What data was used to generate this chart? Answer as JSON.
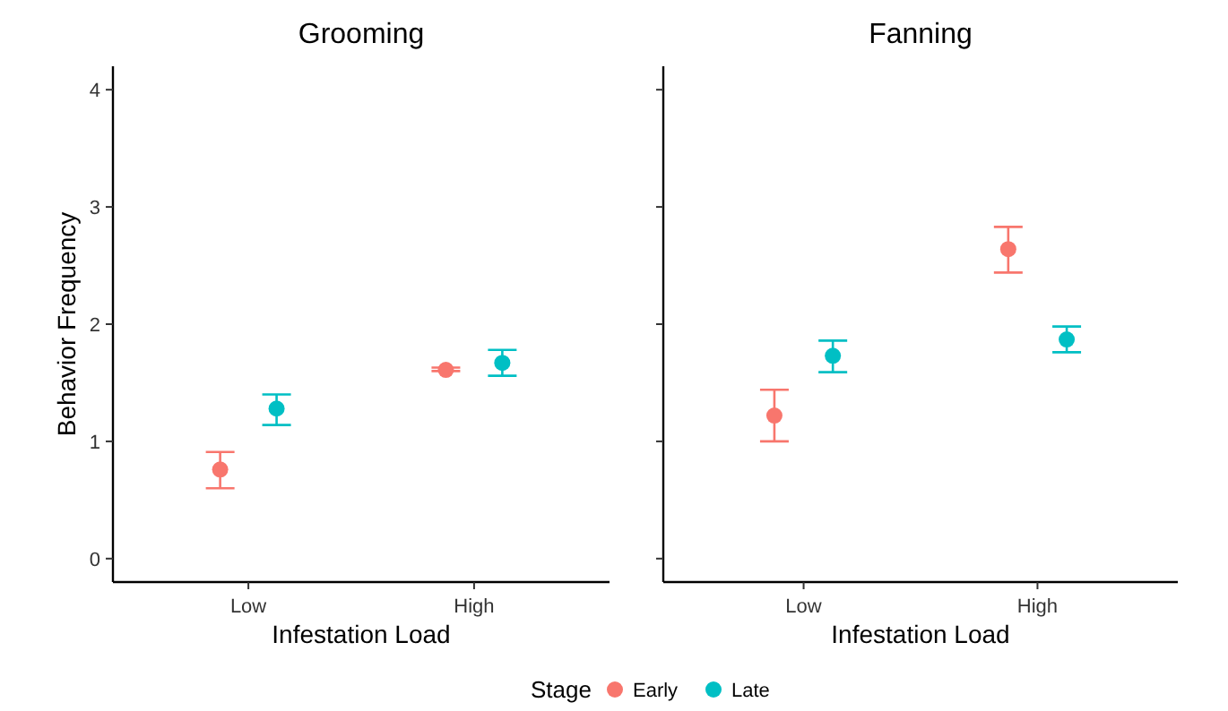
{
  "chart_data": [
    {
      "type": "scatter",
      "title": "Grooming",
      "xlabel": "Infestation Load",
      "ylabel": "Behavior Frequency",
      "legend_title": "Stage",
      "legend": "bottom",
      "marker": "circle",
      "categories": [
        "Low",
        "High"
      ],
      "ylim": [
        -0.2,
        4.2
      ],
      "yticks": [
        0,
        1,
        2,
        3,
        4
      ],
      "grid": false,
      "series": [
        {
          "name": "Early",
          "color": "#f8766d",
          "values": [
            0.76,
            1.61
          ],
          "errors": [
            [
              0.6,
              0.91
            ],
            [
              1.6,
              1.63
            ]
          ]
        },
        {
          "name": "Late",
          "color": "#00bfc4",
          "values": [
            1.28,
            1.67
          ],
          "errors": [
            [
              1.14,
              1.4
            ],
            [
              1.56,
              1.78
            ]
          ]
        }
      ]
    },
    {
      "type": "scatter",
      "title": "Fanning",
      "xlabel": "Infestation Load",
      "marker": "circle",
      "categories": [
        "Low",
        "High"
      ],
      "ylim": [
        -0.2,
        4.2
      ],
      "yticks": [
        {
          "value": 0,
          "label": null
        },
        {
          "value": 1,
          "label": null
        },
        {
          "value": 2,
          "label": null
        },
        {
          "value": 3,
          "label": null
        },
        {
          "value": 4,
          "label": null
        }
      ],
      "tick_labels": "x",
      "grid": false,
      "series": [
        {
          "color": "#f8766d",
          "values": [
            1.22,
            2.64
          ],
          "errors": [
            [
              1.0,
              1.44
            ],
            [
              2.44,
              2.83
            ]
          ]
        },
        {
          "color": "#00bfc4",
          "values": [
            1.73,
            1.87
          ],
          "errors": [
            [
              1.59,
              1.86
            ],
            [
              1.76,
              1.98
            ]
          ]
        }
      ]
    }
  ]
}
